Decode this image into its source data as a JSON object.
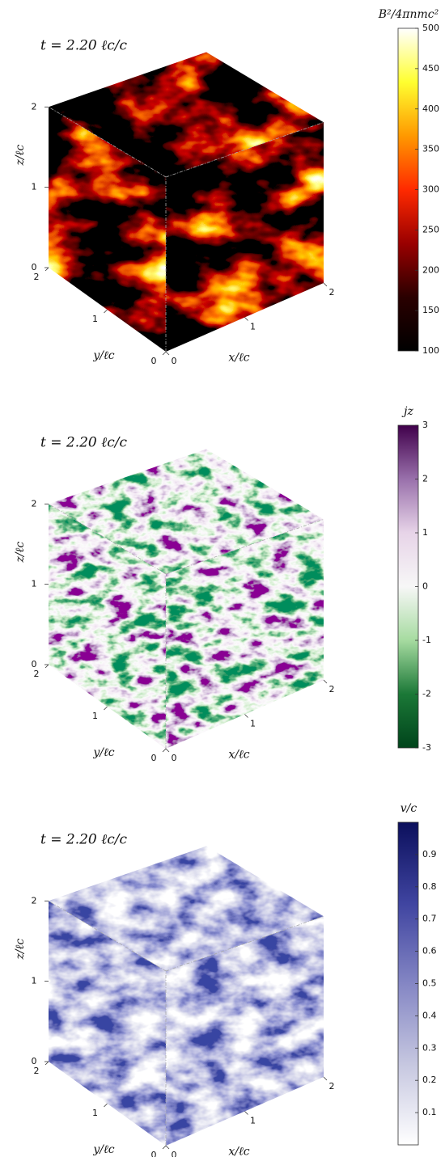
{
  "chart_data": [
    {
      "type": "volume",
      "title": "t = 2.20 ℓc/c",
      "xlabel": "x/ℓc",
      "ylabel": "y/ℓc",
      "zlabel": "z/ℓc",
      "xlim": [
        0,
        2
      ],
      "ylim": [
        0,
        2
      ],
      "zlim": [
        0,
        2
      ],
      "xticks": [
        0,
        1,
        2
      ],
      "yticks": [
        0,
        1,
        2
      ],
      "zticks": [
        0,
        1,
        2
      ],
      "colorbar": {
        "label": "B²/4πnmc²",
        "clim": [
          100,
          500
        ],
        "ticks": [
          100,
          150,
          200,
          250,
          300,
          350,
          400,
          450,
          500
        ],
        "colors": [
          "#000000",
          "#2a0000",
          "#9a0000",
          "#ff2a00",
          "#ff9900",
          "#ffff30",
          "#ffffff"
        ]
      }
    },
    {
      "type": "volume",
      "title": "t = 2.20 ℓc/c",
      "xlabel": "x/ℓc",
      "ylabel": "y/ℓc",
      "zlabel": "z/ℓc",
      "xlim": [
        0,
        2
      ],
      "ylim": [
        0,
        2
      ],
      "zlim": [
        0,
        2
      ],
      "xticks": [
        0,
        1,
        2
      ],
      "yticks": [
        0,
        1,
        2
      ],
      "zticks": [
        0,
        1,
        2
      ],
      "colorbar": {
        "label": "jz",
        "clim": [
          -3,
          3
        ],
        "ticks": [
          -3,
          -2,
          -1,
          0,
          1,
          2,
          3
        ],
        "colors": [
          "#00441b",
          "#1b7837",
          "#a6dba0",
          "#f7f7f7",
          "#e7d4e8",
          "#9970ab",
          "#40004b"
        ]
      }
    },
    {
      "type": "volume",
      "title": "t = 2.20 ℓc/c",
      "xlabel": "x/ℓc",
      "ylabel": "y/ℓc",
      "zlabel": "z/ℓc",
      "xlim": [
        0,
        2
      ],
      "ylim": [
        0,
        2
      ],
      "zlim": [
        0,
        2
      ],
      "xticks": [
        0,
        1,
        2
      ],
      "yticks": [
        0,
        1,
        2
      ],
      "zticks": [
        0,
        1,
        2
      ],
      "colorbar": {
        "label": "v/c",
        "clim": [
          0,
          1
        ],
        "ticks": [
          0.1,
          0.2,
          0.3,
          0.4,
          0.5,
          0.6,
          0.7,
          0.8,
          0.9
        ],
        "colors": [
          "#ffffff",
          "#c6c7e0",
          "#8486c4",
          "#3f44a0",
          "#0b0f5c"
        ]
      }
    }
  ]
}
